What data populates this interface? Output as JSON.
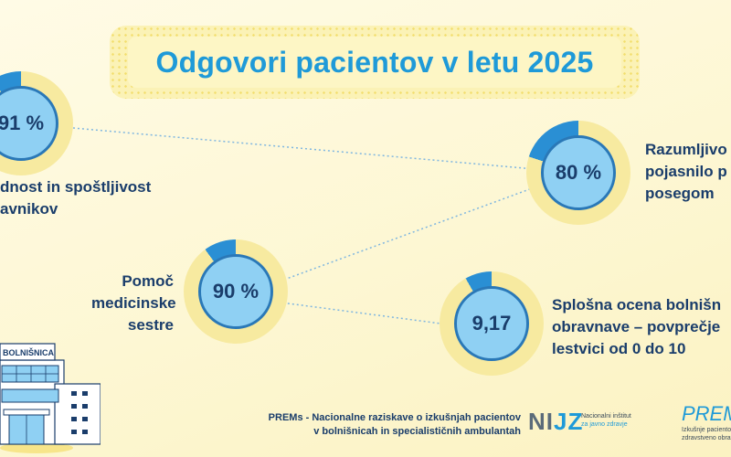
{
  "title": "Odgovori pacientov v letu 2025",
  "gauges": [
    {
      "value": "91 %",
      "fill": 0.91,
      "label_lines": [
        "dnost in spoštljivost",
        "avnikov"
      ]
    },
    {
      "value": "80 %",
      "fill": 0.8,
      "label_lines": [
        "Razumljivo",
        "pojasnilo p",
        "posegom"
      ]
    },
    {
      "value": "90 %",
      "fill": 0.9,
      "label_lines": [
        "Pomoč",
        "medicinske",
        "sestre"
      ]
    },
    {
      "value": "9,17",
      "fill": 0.917,
      "label_lines": [
        "Splošna ocena bolnišn",
        "obravnave – povprečje",
        "lestvici od 0 do 10"
      ]
    }
  ],
  "footer": {
    "line1": "PREMs - Nacionalne raziskave o izkušnjah pacientov",
    "line2": "v bolnišnicah in specialističnih ambulantah",
    "nijz_logo_n": "NI",
    "nijz_logo_jz": "JZ",
    "nijz_sub1": "Nacionalni inštitut",
    "nijz_sub2": "za javno zdravje",
    "prems_logo": "PREM",
    "prems_sub1": "Izkušnje pacientov",
    "prems_sub2": "zdravstveno obrav"
  },
  "hospital_sign": "BOLNIŠNICA",
  "colors": {
    "title": "#1f9ad8",
    "ring_track": "#f7eaa0",
    "ring_fill": "#2a8fd4",
    "gauge_inner": "#8fd0f3",
    "text_dark": "#1a3d6b"
  }
}
